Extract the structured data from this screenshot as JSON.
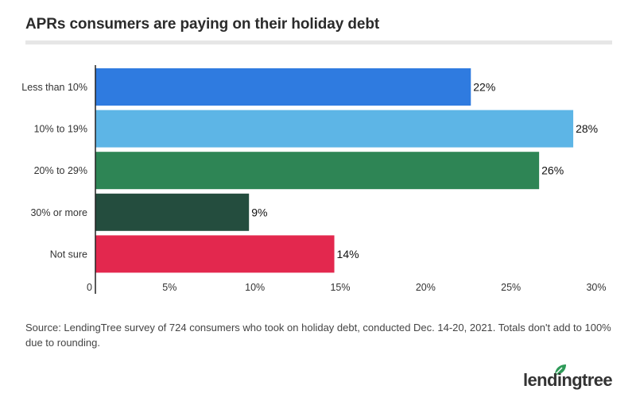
{
  "title": "APRs consumers are paying on their holiday debt",
  "source": "Source: LendingTree survey of 724 consumers who took on holiday debt, conducted Dec. 14-20, 2021. Totals don't add to 100% due to rounding.",
  "logo": {
    "text": "lendingtree",
    "icon": "leaf-icon",
    "leaf_color": "#2e9a58"
  },
  "chart_data": {
    "type": "bar",
    "orientation": "horizontal",
    "categories": [
      "Less than 10%",
      "10% to 19%",
      "20% to 29%",
      "30% or more",
      "Not sure"
    ],
    "values": [
      22,
      28,
      26,
      9,
      14
    ],
    "value_labels": [
      "22%",
      "28%",
      "26%",
      "9%",
      "14%"
    ],
    "colors": [
      "#2f7be0",
      "#5db5e6",
      "#2e8555",
      "#244d3e",
      "#e3284e"
    ],
    "xlim": [
      0,
      30
    ],
    "ticks": [
      0,
      5,
      10,
      15,
      20,
      25,
      30
    ],
    "tick_labels": [
      "0",
      "5%",
      "10%",
      "15%",
      "20%",
      "25%",
      "30%"
    ],
    "grid": false,
    "legend": "none"
  }
}
